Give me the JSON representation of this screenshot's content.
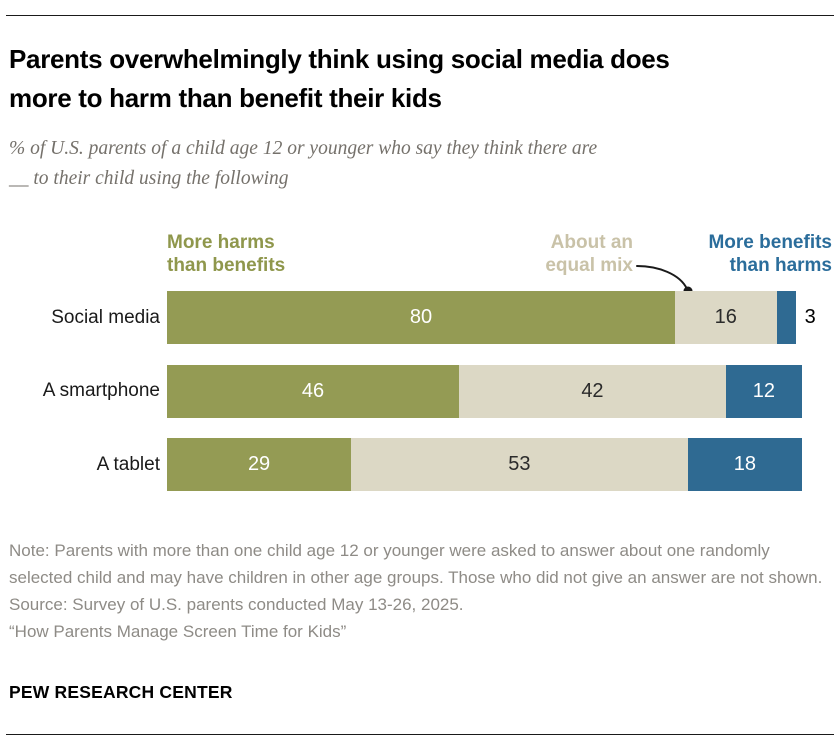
{
  "header": {
    "title_line1": "Parents overwhelmingly think using social media does",
    "title_line2": "more to harm than benefit their kids",
    "subtitle_line1": "% of U.S. parents of a child age 12 or younger who say they think there are",
    "subtitle_line2": "__ to their child using the following"
  },
  "legend": {
    "harms": {
      "line1": "More harms",
      "line2": "than benefits",
      "color": "#8f974c"
    },
    "equal": {
      "line1": "About an",
      "line2": "equal mix",
      "color": "#c9c2a8"
    },
    "benefits": {
      "line1": "More benefits",
      "line2": "than harms",
      "color": "#2b6d9b"
    }
  },
  "chart_data": {
    "type": "bar",
    "orientation": "horizontal",
    "stacked": true,
    "categories": [
      "Social media",
      "A smartphone",
      "A tablet"
    ],
    "series": [
      {
        "name": "More harms than benefits",
        "color": "#949b54",
        "label_color": "#ffffff",
        "values": [
          80,
          46,
          29
        ]
      },
      {
        "name": "About an equal mix",
        "color": "#dcd8c5",
        "label_color": "#2b2b2b",
        "values": [
          16,
          42,
          53
        ]
      },
      {
        "name": "More benefits than harms",
        "color": "#2f6a92",
        "label_color": "#ffffff",
        "values": [
          3,
          12,
          18
        ]
      }
    ],
    "xlim": [
      0,
      100
    ],
    "value_labels": true,
    "grid": false,
    "legend_position": "top"
  },
  "footer": {
    "note": "Note: Parents with more than one child age 12 or younger were asked to answer about one randomly selected child and may have children in other age groups. Those who did not give an answer are not shown.",
    "source": "Source: Survey of U.S. parents conducted May 13-26, 2025.",
    "report": "“How Parents Manage Screen Time for Kids”",
    "brand": "PEW RESEARCH CENTER"
  }
}
